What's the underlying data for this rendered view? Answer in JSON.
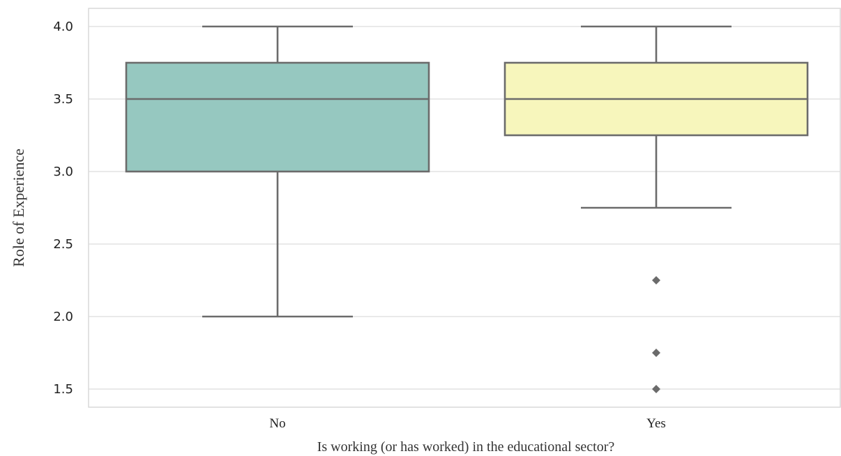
{
  "chart_data": {
    "type": "box",
    "title": "",
    "xlabel": "Is working (or has worked) in the educational sector?",
    "ylabel": "Role of Experience",
    "ylim": [
      1.38,
      4.06
    ],
    "yticks": [
      "1.5",
      "2.0",
      "2.5",
      "3.0",
      "3.5",
      "4.0"
    ],
    "grid": true,
    "categories": [
      "No",
      "Yes"
    ],
    "boxes": [
      {
        "category": "No",
        "whisker_low": 2.0,
        "q1": 3.0,
        "median": 3.5,
        "q3": 3.75,
        "whisker_high": 4.0,
        "outliers": [],
        "color": "#96c8c0"
      },
      {
        "category": "Yes",
        "whisker_low": 2.75,
        "q1": 3.25,
        "median": 3.5,
        "q3": 3.75,
        "whisker_high": 4.0,
        "outliers": [
          2.25,
          1.75,
          1.5
        ],
        "color": "#f7f6bc"
      }
    ],
    "colors": {
      "line": "#6b6b6b",
      "grid": "#dcdcdc",
      "frame": "#d9d9d9"
    }
  }
}
